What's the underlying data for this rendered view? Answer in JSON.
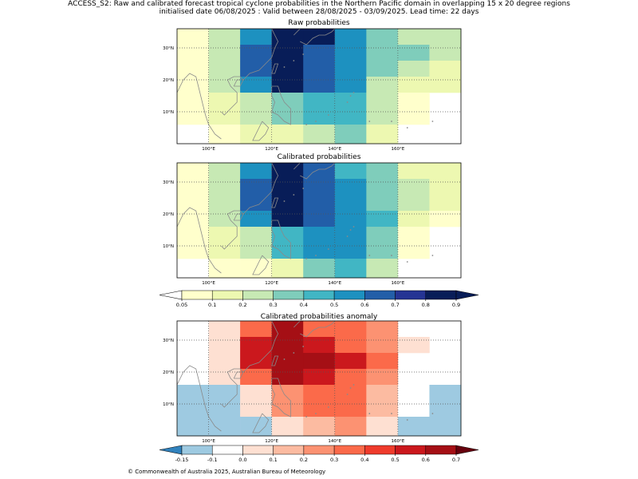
{
  "figure": {
    "title_line1": "ACCESS_S2: Raw and calibrated forecast tropical cyclone probabilities in the Northern Pacific domain in overlapping 15 x 20 degree regions",
    "title_line2": "initialised date 06/08/2025 :  Valid between 28/08/2025 - 03/09/2025. Lead time: 22 days",
    "copyright": "© Commonwealth of Australia 2025, Australian Bureau of Meteorology"
  },
  "chart_data": [
    {
      "type": "heatmap",
      "title": "Raw probabilities",
      "x_ticks": [
        "100°E",
        "120°E",
        "140°E",
        "160°E"
      ],
      "y_ticks": [
        "10°N",
        "20°N",
        "30°N"
      ],
      "xlim": [
        90,
        180
      ],
      "ylim": [
        0,
        36
      ],
      "x_edges": [
        90,
        100,
        110,
        120,
        130,
        140,
        150,
        160,
        170,
        180
      ],
      "y_edges": [
        36,
        31,
        26,
        21,
        16,
        11,
        6,
        0
      ],
      "grid": true,
      "values": [
        [
          0.05,
          0.2,
          0.5,
          0.8,
          0.8,
          0.5,
          0.3,
          0.2,
          0.2
        ],
        [
          0.05,
          0.2,
          0.6,
          0.8,
          0.6,
          0.5,
          0.3,
          0.3,
          0.2
        ],
        [
          0.05,
          0.2,
          0.6,
          0.8,
          0.6,
          0.5,
          0.3,
          0.2,
          0.1
        ],
        [
          0.05,
          0.2,
          0.5,
          0.8,
          0.6,
          0.5,
          0.2,
          0.1,
          0.1
        ],
        [
          0.05,
          0.1,
          0.2,
          0.3,
          0.4,
          0.4,
          0.2,
          0.05,
          null
        ],
        [
          0.05,
          0.1,
          0.2,
          0.3,
          0.4,
          0.4,
          0.2,
          0.05,
          null
        ],
        [
          null,
          0.05,
          0.1,
          0.1,
          0.2,
          0.3,
          0.1,
          null,
          null
        ]
      ]
    },
    {
      "type": "heatmap",
      "title": "Calibrated probabilities",
      "x_ticks": [
        "100°E",
        "120°E",
        "140°E",
        "160°E"
      ],
      "y_ticks": [
        "10°N",
        "20°N",
        "30°N"
      ],
      "xlim": [
        90,
        180
      ],
      "ylim": [
        0,
        36
      ],
      "x_edges": [
        90,
        100,
        110,
        120,
        130,
        140,
        150,
        160,
        170,
        180
      ],
      "y_edges": [
        36,
        31,
        26,
        21,
        16,
        11,
        6,
        0
      ],
      "grid": true,
      "values": [
        [
          0.05,
          0.2,
          0.5,
          0.8,
          0.6,
          0.4,
          0.3,
          0.1,
          0.1
        ],
        [
          0.05,
          0.2,
          0.6,
          0.8,
          0.6,
          0.5,
          0.3,
          0.2,
          0.1
        ],
        [
          0.05,
          0.2,
          0.6,
          0.8,
          0.6,
          0.5,
          0.3,
          0.2,
          0.1
        ],
        [
          0.05,
          0.2,
          0.5,
          0.8,
          0.6,
          0.5,
          0.4,
          0.1,
          0.05
        ],
        [
          0.05,
          0.1,
          0.2,
          0.4,
          0.5,
          0.5,
          0.3,
          0.05,
          null
        ],
        [
          0.05,
          0.1,
          0.2,
          0.4,
          0.5,
          0.5,
          0.3,
          0.05,
          null
        ],
        [
          null,
          0.05,
          0.05,
          0.1,
          0.3,
          0.4,
          0.2,
          null,
          null
        ]
      ]
    },
    {
      "type": "heatmap",
      "title": "Calibrated probabilities anomaly",
      "x_ticks": [
        "100°E",
        "120°E",
        "140°E",
        "160°E"
      ],
      "y_ticks": [
        "10°N",
        "20°N",
        "30°N"
      ],
      "xlim": [
        90,
        180
      ],
      "ylim": [
        0,
        36
      ],
      "x_edges": [
        90,
        100,
        110,
        120,
        130,
        140,
        150,
        160,
        170,
        180
      ],
      "y_edges": [
        36,
        31,
        26,
        21,
        16,
        11,
        6,
        0
      ],
      "grid": true,
      "values": [
        [
          -0.1,
          0.0,
          0.3,
          0.6,
          0.3,
          0.3,
          0.2,
          null,
          null
        ],
        [
          -0.1,
          0.0,
          0.5,
          0.6,
          0.5,
          0.3,
          0.2,
          0.0,
          null
        ],
        [
          -0.1,
          0.0,
          0.5,
          0.6,
          0.6,
          0.5,
          0.3,
          null,
          -0.1
        ],
        [
          -0.1,
          0.0,
          0.3,
          0.6,
          0.5,
          0.3,
          0.2,
          null,
          -0.1
        ],
        [
          -0.15,
          -0.15,
          0.0,
          0.2,
          0.3,
          0.3,
          0.1,
          -0.1,
          -0.15
        ],
        [
          -0.15,
          -0.15,
          0.0,
          0.2,
          0.3,
          0.3,
          0.1,
          -0.1,
          -0.15
        ],
        [
          -0.15,
          -0.15,
          -0.15,
          0.0,
          0.1,
          0.2,
          0.0,
          -0.15,
          -0.15
        ]
      ]
    }
  ],
  "colorbars": {
    "probability": {
      "ticks": [
        "0.05",
        "0.1",
        "0.2",
        "0.3",
        "0.4",
        "0.5",
        "0.6",
        "0.7",
        "0.8",
        "0.9"
      ],
      "colors": [
        "#ffffcc",
        "#edf8b1",
        "#c7e9b4",
        "#7fcdbb",
        "#41b6c4",
        "#1d91c0",
        "#225ea8",
        "#253494",
        "#081d58"
      ],
      "under_color": "#ffffff",
      "over_color": "#081d58"
    },
    "anomaly": {
      "ticks": [
        "-0.15",
        "-0.1",
        "0.0",
        "0.1",
        "0.2",
        "0.3",
        "0.4",
        "0.5",
        "0.6",
        "0.7"
      ],
      "colors": [
        "#9ecae1",
        "#ffffff",
        "#fee0d2",
        "#fcbba1",
        "#fc9272",
        "#fb6a4a",
        "#ef3b2c",
        "#cb181d",
        "#a50f15"
      ],
      "under_color": "#3182bd",
      "over_color": "#67000d"
    }
  }
}
